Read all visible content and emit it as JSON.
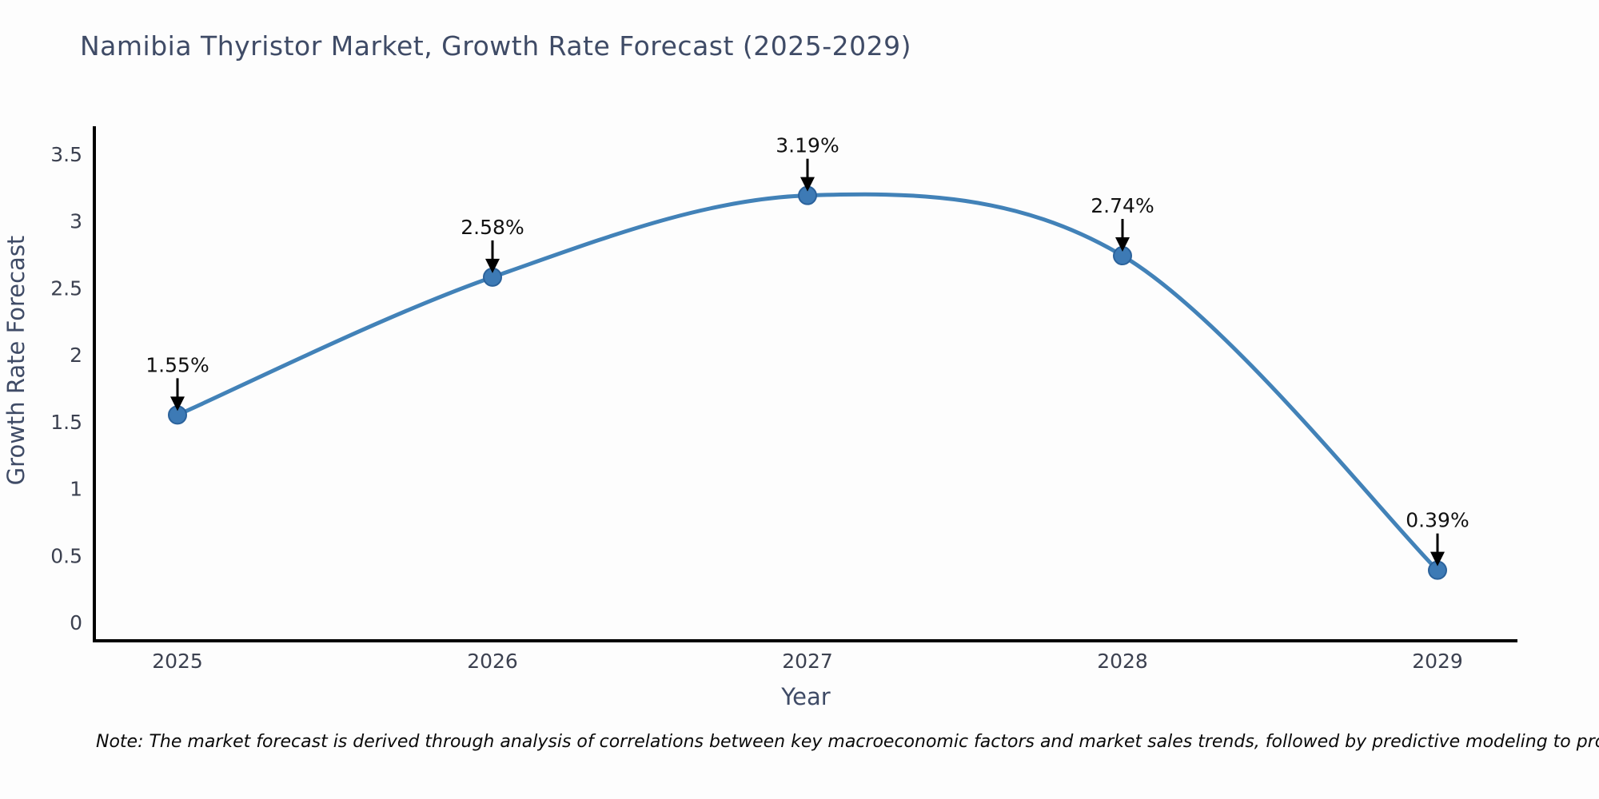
{
  "note": "Note: The market forecast is derived through analysis of correlations between key macroeconomic factors and market sales trends, followed by predictive modeling to project future sales",
  "chart_data": {
    "type": "line",
    "title": "Namibia Thyristor Market, Growth Rate Forecast (2025-2029)",
    "x": [
      "2025",
      "2026",
      "2027",
      "2028",
      "2029"
    ],
    "values": [
      1.55,
      2.58,
      3.19,
      2.74,
      0.39
    ],
    "point_labels": [
      "1.55%",
      "2.58%",
      "3.19%",
      "2.74%",
      "0.39%"
    ],
    "xlabel": "Year",
    "ylabel": "Growth Rate Forecast",
    "yticks": [
      0,
      0.5,
      1,
      1.5,
      2,
      2.5,
      3,
      3.5
    ],
    "ytick_labels": [
      "0",
      "0.5",
      "1",
      "1.5",
      "2",
      "2.5",
      "3",
      "3.5"
    ],
    "ylim": [
      -0.15,
      3.7
    ],
    "line_shape": "spline",
    "grid": false,
    "legend": "none",
    "colors": {
      "line": "#4282b8",
      "marker_fill": "#3d7ab5",
      "marker_edge": "#2b629b",
      "axis": "#000000",
      "title_text": "#3f4b66",
      "axis_label_text": "#3f4b66",
      "tick_text": "#3c4150",
      "annotation_text": "#111111",
      "arrow": "#000000"
    }
  }
}
